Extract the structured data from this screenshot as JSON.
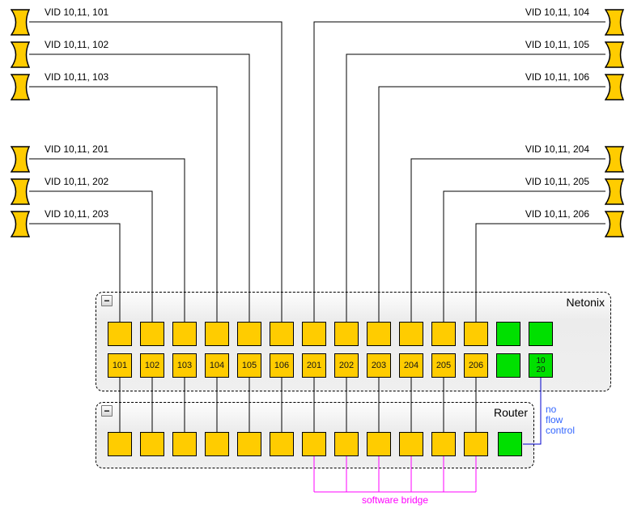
{
  "colors": {
    "port_yellow": "#FFCC00",
    "port_green": "#00E000",
    "wire": "#000000",
    "flow_control_wire": "#0000CC",
    "flow_control_text": "#3366FF",
    "software_bridge": "#FF00FF"
  },
  "antennas": {
    "left": [
      {
        "label": "VID 10,11, 101",
        "connects_to": "106"
      },
      {
        "label": "VID 10,11, 102",
        "connects_to": "105"
      },
      {
        "label": "VID 10,11, 103",
        "connects_to": "104"
      },
      {
        "label": "VID 10,11, 201",
        "connects_to": "103"
      },
      {
        "label": "VID 10,11, 202",
        "connects_to": "102"
      },
      {
        "label": "VID 10,11, 203",
        "connects_to": "101"
      }
    ],
    "right": [
      {
        "label": "VID 10,11, 104",
        "connects_to": "201"
      },
      {
        "label": "VID 10,11, 105",
        "connects_to": "202"
      },
      {
        "label": "VID 10,11, 106",
        "connects_to": "203"
      },
      {
        "label": "VID 10,11, 204",
        "connects_to": "204"
      },
      {
        "label": "VID 10,11, 205",
        "connects_to": "205"
      },
      {
        "label": "VID 10,11, 206",
        "connects_to": "206"
      }
    ]
  },
  "netonix": {
    "title": "Netonix",
    "collapse_button": "−",
    "port_labels": [
      "101",
      "102",
      "103",
      "104",
      "105",
      "106",
      "201",
      "202",
      "203",
      "204",
      "205",
      "206"
    ],
    "uplink_port_label": "10\n20"
  },
  "router": {
    "title": "Router",
    "collapse_button": "−"
  },
  "bridge_ports": [
    "201",
    "202",
    "203",
    "204",
    "205",
    "206"
  ],
  "annotations": {
    "no_flow_control": "no\nflow\ncontrol",
    "software_bridge": "software bridge"
  }
}
